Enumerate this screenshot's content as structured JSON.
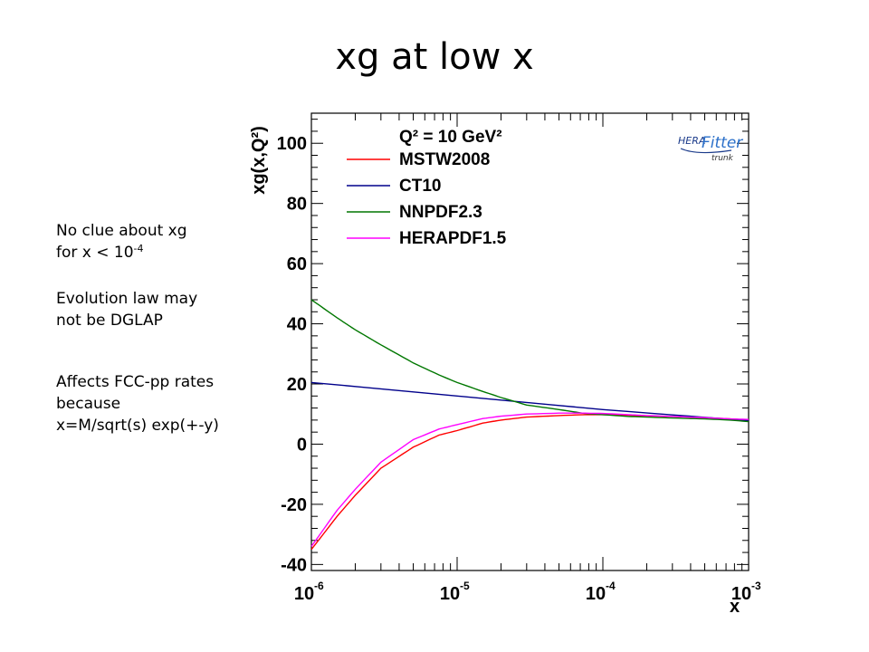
{
  "slide": {
    "title": "xg at low x"
  },
  "notes": {
    "note1_line1": "No clue about xg",
    "note1_line2_prefix": "for x < 10",
    "note1_line2_exp": "-4",
    "note2_line1": "Evolution law may",
    "note2_line2": "not be DGLAP",
    "note3_line1": "Affects FCC-pp rates",
    "note3_line2": "because",
    "note3_line3": "x=M/sqrt(s) exp(+-y)"
  },
  "logo": {
    "text_hera": "HERA",
    "text_fitter": "Fitter",
    "text_trunk": "trunk"
  },
  "chart_data": {
    "type": "line",
    "xscale": "log",
    "xlim": [
      1e-06,
      0.001
    ],
    "ylim": [
      -42,
      110
    ],
    "xlabel": "x",
    "ylabel": "xg(x,Q²)",
    "legend_header": "Q² = 10 GeV²",
    "legend_position": "top-left",
    "yticks": [
      -40,
      -20,
      0,
      20,
      40,
      60,
      80,
      100
    ],
    "xtick_labels": [
      {
        "value": 1e-06,
        "base": "10",
        "exp": "-6"
      },
      {
        "value": 1e-05,
        "base": "10",
        "exp": "-5"
      },
      {
        "value": 0.0001,
        "base": "10",
        "exp": "-4"
      },
      {
        "value": 0.001,
        "base": "10",
        "exp": "-3"
      }
    ],
    "series": [
      {
        "name": "MSTW2008",
        "color": "#ff0000",
        "x": [
          1e-06,
          1.5e-06,
          2e-06,
          3e-06,
          5e-06,
          7.5e-06,
          1e-05,
          1.5e-05,
          2e-05,
          3e-05,
          5e-05,
          7.5e-05,
          0.0001,
          0.00015,
          0.0002,
          0.0003,
          0.0005,
          0.00075,
          0.001
        ],
        "y": [
          -35,
          -24,
          -17,
          -8,
          -1,
          3,
          4.5,
          7,
          8,
          9,
          9.5,
          9.8,
          9.8,
          9.6,
          9.4,
          9.2,
          8.8,
          8.4,
          8
        ]
      },
      {
        "name": "CT10",
        "color": "#00008b",
        "x": [
          1e-06,
          1e-05,
          0.0001,
          0.001
        ],
        "y": [
          20.5,
          16,
          11.5,
          7.8
        ]
      },
      {
        "name": "NNPDF2.3",
        "color": "#007700",
        "x": [
          1e-06,
          1.5e-06,
          2e-06,
          3e-06,
          5e-06,
          7.5e-06,
          1e-05,
          1.5e-05,
          2e-05,
          3e-05,
          5e-05,
          7.5e-05,
          0.0001,
          0.00015,
          0.0002,
          0.0003,
          0.0005,
          0.00075,
          0.001
        ],
        "y": [
          48,
          42,
          38,
          33,
          27,
          23,
          20.5,
          17.5,
          15.5,
          13,
          11.5,
          10.2,
          9.8,
          9.2,
          9,
          8.7,
          8.4,
          8,
          7.5
        ]
      },
      {
        "name": "HERAPDF1.5",
        "color": "#ff00ff",
        "x": [
          1e-06,
          1.5e-06,
          2e-06,
          3e-06,
          5e-06,
          7.5e-06,
          1e-05,
          1.5e-05,
          2e-05,
          3e-05,
          5e-05,
          7.5e-05,
          0.0001,
          0.00015,
          0.0002,
          0.0003,
          0.0005,
          0.00075,
          0.001
        ],
        "y": [
          -34,
          -22,
          -15,
          -6,
          1.5,
          5,
          6.5,
          8.5,
          9.3,
          10,
          10.3,
          10.3,
          10.2,
          9.8,
          9.5,
          9.2,
          8.8,
          8.4,
          8.2
        ]
      }
    ]
  }
}
